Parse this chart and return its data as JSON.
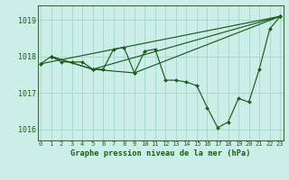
{
  "xlabel": "Graphe pression niveau de la mer (hPa)",
  "ylim": [
    1015.7,
    1019.4
  ],
  "xlim": [
    -0.3,
    23.3
  ],
  "yticks": [
    1016,
    1017,
    1018,
    1019
  ],
  "xticks": [
    0,
    1,
    2,
    3,
    4,
    5,
    6,
    7,
    8,
    9,
    10,
    11,
    12,
    13,
    14,
    15,
    16,
    17,
    18,
    19,
    20,
    21,
    22,
    23
  ],
  "bg_color": "#cceee8",
  "line_color": "#1a5c1a",
  "grid_color": "#aad8d0",
  "series1": [
    [
      0,
      1017.8
    ],
    [
      1,
      1018.0
    ],
    [
      2,
      1017.85
    ],
    [
      3,
      1017.85
    ],
    [
      4,
      1017.85
    ],
    [
      5,
      1017.65
    ],
    [
      6,
      1017.65
    ],
    [
      7,
      1018.2
    ],
    [
      8,
      1018.25
    ],
    [
      9,
      1017.55
    ],
    [
      10,
      1018.15
    ],
    [
      11,
      1018.2
    ],
    [
      12,
      1017.35
    ],
    [
      13,
      1017.35
    ],
    [
      14,
      1017.3
    ],
    [
      15,
      1017.2
    ],
    [
      16,
      1016.6
    ],
    [
      17,
      1016.05
    ],
    [
      18,
      1016.2
    ],
    [
      19,
      1016.85
    ],
    [
      20,
      1016.75
    ],
    [
      21,
      1017.65
    ],
    [
      22,
      1018.75
    ],
    [
      23,
      1019.1
    ]
  ],
  "series2": [
    [
      0,
      1017.8
    ],
    [
      23,
      1019.1
    ]
  ],
  "series3": [
    [
      1,
      1018.0
    ],
    [
      5,
      1017.65
    ],
    [
      23,
      1019.1
    ]
  ],
  "series4": [
    [
      1,
      1018.0
    ],
    [
      5,
      1017.65
    ],
    [
      9,
      1017.55
    ],
    [
      23,
      1019.1
    ]
  ]
}
